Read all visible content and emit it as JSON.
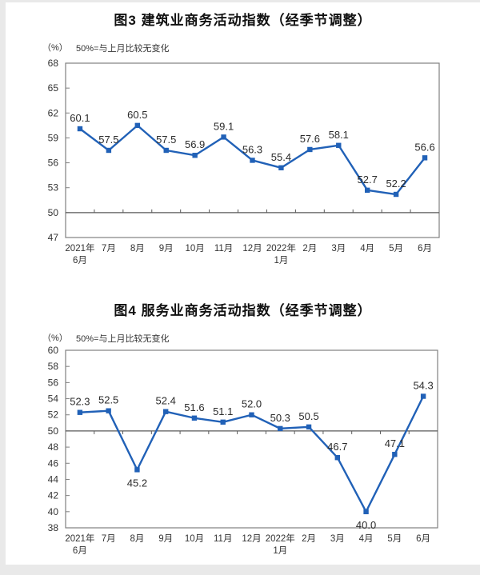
{
  "page": {
    "background_color": "#e9e9e9",
    "panel_color": "#ffffff"
  },
  "chart_data": [
    {
      "type": "line",
      "title": "图3 建筑业商务活动指数（经季节调整）",
      "unit_label": "（%）",
      "note": "50%=与上月比较无变化",
      "categories": [
        [
          "2021年",
          "6月"
        ],
        [
          "7月"
        ],
        [
          "8月"
        ],
        [
          "9月"
        ],
        [
          "10月"
        ],
        [
          "11月"
        ],
        [
          "12月"
        ],
        [
          "2022年",
          "1月"
        ],
        [
          "2月"
        ],
        [
          "3月"
        ],
        [
          "4月"
        ],
        [
          "5月"
        ],
        [
          "6月"
        ]
      ],
      "values": [
        60.1,
        57.5,
        60.5,
        57.5,
        56.9,
        59.1,
        56.3,
        55.4,
        57.6,
        58.1,
        52.7,
        52.2,
        56.6
      ],
      "ylim": [
        47,
        68
      ],
      "ytick_step": 3,
      "reference_line": 50,
      "label_below_indices": [],
      "line_color": "#2161b7",
      "axis_color": "#808080",
      "reference_line_color": "#595959",
      "legend": "none",
      "grid": "off"
    },
    {
      "type": "line",
      "title": "图4 服务业商务活动指数（经季节调整）",
      "unit_label": "（%）",
      "note": "50%=与上月比较无变化",
      "categories": [
        [
          "2021年",
          "6月"
        ],
        [
          "7月"
        ],
        [
          "8月"
        ],
        [
          "9月"
        ],
        [
          "10月"
        ],
        [
          "11月"
        ],
        [
          "12月"
        ],
        [
          "2022年",
          "1月"
        ],
        [
          "2月"
        ],
        [
          "3月"
        ],
        [
          "4月"
        ],
        [
          "5月"
        ],
        [
          "6月"
        ]
      ],
      "values": [
        52.3,
        52.5,
        45.2,
        52.4,
        51.6,
        51.1,
        52.0,
        50.3,
        50.5,
        46.7,
        40.0,
        47.1,
        54.3
      ],
      "ylim": [
        38,
        60
      ],
      "ytick_step": 2,
      "reference_line": 50,
      "label_below_indices": [
        2,
        10
      ],
      "line_color": "#2161b7",
      "axis_color": "#808080",
      "reference_line_color": "#595959",
      "legend": "none",
      "grid": "off"
    }
  ]
}
